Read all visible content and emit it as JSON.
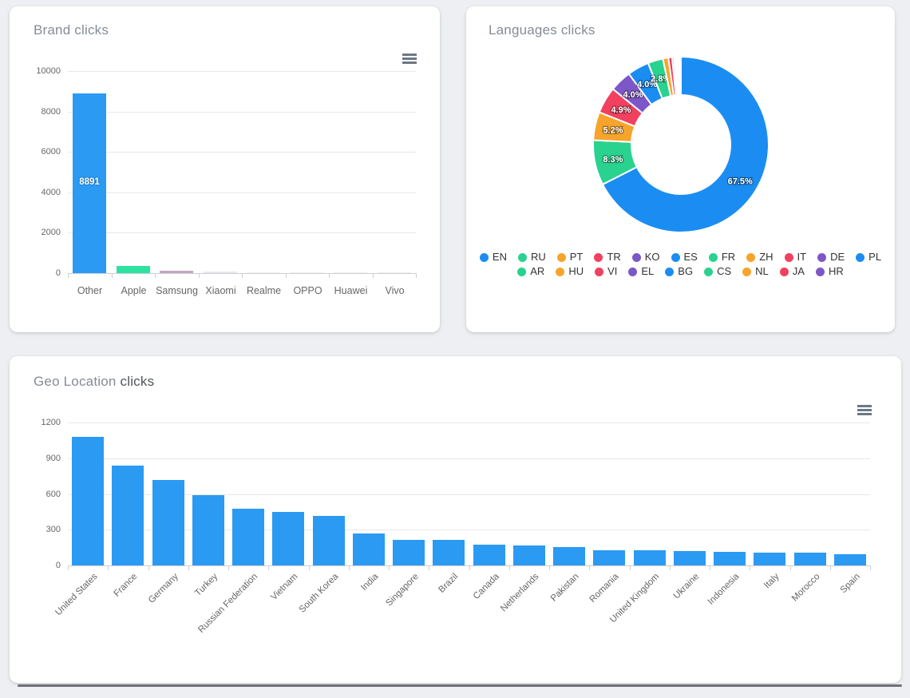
{
  "cards": {
    "brand": {
      "title": "Brand clicks"
    },
    "languages": {
      "title": "Languages clicks"
    },
    "geo": {
      "title_muted": "Geo Location",
      "title_rest": "clicks"
    }
  },
  "icons": {
    "brand_menu": "hamburger-context-menu",
    "geo_menu": "hamburger-context-menu"
  },
  "chart_data": [
    {
      "id": "brand",
      "type": "bar",
      "title": "Brand clicks",
      "categories": [
        "Other",
        "Apple",
        "Samsung",
        "Xiaomi",
        "Realme",
        "OPPO",
        "Huawei",
        "Vivo"
      ],
      "values": [
        8891,
        350,
        130,
        60,
        25,
        15,
        12,
        10
      ],
      "data_labels": [
        "8891",
        "",
        "",
        "",
        "",
        "",
        "",
        ""
      ],
      "bar_colors": [
        "#2b9af3",
        "#2ee3a1",
        "#c2a6c0",
        "#eae7ea",
        "#ededed",
        "#ededed",
        "#ededed",
        "#ededed"
      ],
      "xlabel": "",
      "ylabel": "",
      "ylim": [
        0,
        10000
      ],
      "yticks": [
        0,
        2000,
        4000,
        6000,
        8000,
        10000
      ],
      "grid": true,
      "legend": "none",
      "xlabel_rotation": 0
    },
    {
      "id": "languages",
      "type": "pie",
      "subtype": "donut",
      "title": "Languages clicks",
      "labels": [
        "EN",
        "RU",
        "PT",
        "TR",
        "KO",
        "ES",
        "FR",
        "ZH",
        "IT",
        "DE",
        "PL",
        "AR",
        "HU",
        "VI",
        "EL",
        "BG",
        "CS",
        "NL",
        "JA",
        "HR"
      ],
      "values_percent": [
        67.5,
        8.3,
        5.2,
        4.9,
        4.0,
        4.0,
        2.8,
        1.0,
        0.7,
        0.35,
        0.3,
        0.2,
        0.2,
        0.15,
        0.1,
        0.08,
        0.07,
        0.05,
        0.05,
        0.05
      ],
      "slice_labels_shown": [
        "67.5%",
        "8.3%",
        "5.2%",
        "4.9%",
        "4.0%",
        "4.0%",
        "2.8%"
      ],
      "slice_label_min_percent": 2.8,
      "colors_cycle": [
        "#1b8df2",
        "#29d28e",
        "#f6a42b",
        "#f2405f",
        "#7d57c8"
      ],
      "legend_position": "bottom",
      "legend_row_break": 11,
      "start_angle_deg": 0,
      "direction": "clockwise"
    },
    {
      "id": "geo",
      "type": "bar",
      "title": "Geo Location clicks",
      "categories": [
        "United States",
        "France",
        "Germany",
        "Turkey",
        "Russian Federation",
        "Vietnam",
        "South Korea",
        "India",
        "Singapore",
        "Brazil",
        "Canada",
        "Netherlands",
        "Pakistan",
        "Romania",
        "United Kingdom",
        "Ukraine",
        "Indonesia",
        "Italy",
        "Morocco",
        "Spain"
      ],
      "values": [
        1080,
        840,
        720,
        590,
        475,
        450,
        415,
        270,
        215,
        212,
        175,
        165,
        155,
        125,
        125,
        120,
        115,
        110,
        110,
        95
      ],
      "data_labels": [],
      "bar_color": "#2b9af3",
      "xlabel": "",
      "ylabel": "",
      "ylim": [
        0,
        1200
      ],
      "yticks": [
        0,
        300,
        600,
        900,
        1200
      ],
      "grid": true,
      "legend": "none",
      "xlabel_rotation": -45
    }
  ],
  "colors": {
    "page_background": "#edeff2",
    "card_background": "#ffffff",
    "title_muted": "#858c96",
    "title_dark": "#4f545b",
    "axis_label": "#666666",
    "gridline": "#e7e8ea",
    "axis_line": "#ccd1d6",
    "primary_bar_blue": "#2b9af3"
  }
}
